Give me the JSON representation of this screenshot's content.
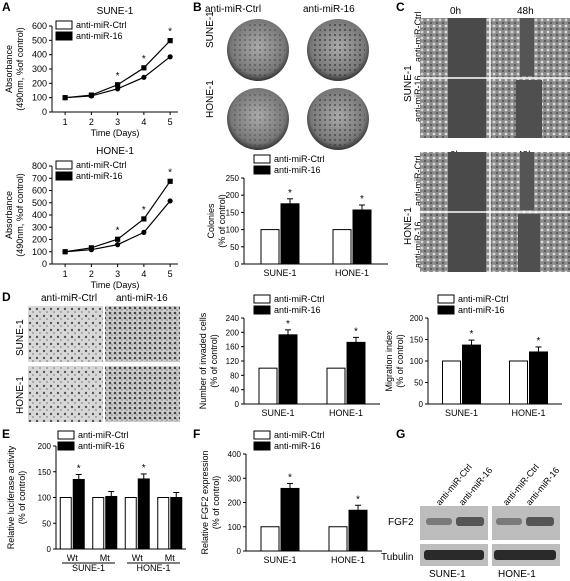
{
  "panel_letters": {
    "A": "A",
    "B": "B",
    "C": "C",
    "D": "D",
    "E": "E",
    "F": "F",
    "G": "G"
  },
  "legend": {
    "ctrl": "anti-miR-Ctrl",
    "mir16": "anti-miR-16"
  },
  "cells": {
    "sune": "SUNE-1",
    "hone": "HONE-1"
  },
  "photo_text": {
    "h0": "0h",
    "h48": "48h",
    "fgf2": "FGF2",
    "tubulin": "Tubulin"
  },
  "colors": {
    "ctrl": "#ffffff",
    "mir16": "#000000",
    "stroke": "#000000"
  },
  "chart_data": [
    {
      "id": "A-top",
      "type": "line",
      "title": "SUNE-1",
      "xlabel": "Time (Days)",
      "ylabel": "Absorbance (490nm, %of control)",
      "x": [
        1,
        2,
        3,
        4,
        5
      ],
      "ylim": [
        0,
        600
      ],
      "yticks": [
        0,
        100,
        200,
        300,
        400,
        500,
        600
      ],
      "series": [
        {
          "name": "anti-miR-Ctrl",
          "values": [
            100,
            112,
            162,
            242,
            385
          ]
        },
        {
          "name": "anti-miR-16",
          "values": [
            100,
            118,
            190,
            308,
            498
          ]
        }
      ],
      "annotations": [
        "*",
        "*",
        "*"
      ]
    },
    {
      "id": "A-bottom",
      "type": "line",
      "title": "HONE-1",
      "xlabel": "Time (Days)",
      "ylabel": "Absorbance (490nm, %of control)",
      "x": [
        1,
        2,
        3,
        4,
        5
      ],
      "ylim": [
        0,
        800
      ],
      "yticks": [
        0,
        100,
        200,
        300,
        400,
        500,
        600,
        700,
        800
      ],
      "series": [
        {
          "name": "anti-miR-Ctrl",
          "values": [
            100,
            117,
            158,
            258,
            515
          ]
        },
        {
          "name": "anti-miR-16",
          "values": [
            100,
            132,
            202,
            368,
            675
          ]
        }
      ],
      "annotations": [
        "*",
        "*",
        "*"
      ]
    },
    {
      "id": "B",
      "type": "bar",
      "ylabel": "Colonies (% of control)",
      "categories": [
        "SUNE-1",
        "HONE-1"
      ],
      "ylim": [
        0,
        250
      ],
      "yticks": [
        0,
        50,
        100,
        150,
        200,
        250
      ],
      "series": [
        {
          "name": "anti-miR-Ctrl",
          "values": [
            100,
            100
          ]
        },
        {
          "name": "anti-miR-16",
          "values": [
            175,
            157
          ]
        }
      ],
      "annotations": [
        "*",
        "*"
      ]
    },
    {
      "id": "D-invasion",
      "type": "bar",
      "ylabel": "Number of invaded cells (% of control)",
      "categories": [
        "SUNE-1",
        "HONE-1"
      ],
      "ylim": [
        0,
        240
      ],
      "yticks": [
        0,
        40,
        80,
        120,
        160,
        200,
        240
      ],
      "series": [
        {
          "name": "anti-miR-Ctrl",
          "values": [
            100,
            100
          ]
        },
        {
          "name": "anti-miR-16",
          "values": [
            193,
            172
          ]
        }
      ],
      "annotations": [
        "*",
        "*"
      ]
    },
    {
      "id": "D-migration",
      "type": "bar",
      "ylabel": "Migration index (% of control)",
      "categories": [
        "SUNE-1",
        "HONE-1"
      ],
      "ylim": [
        0,
        200
      ],
      "yticks": [
        0,
        50,
        100,
        150,
        200
      ],
      "series": [
        {
          "name": "anti-miR-Ctrl",
          "values": [
            100,
            100
          ]
        },
        {
          "name": "anti-miR-16",
          "values": [
            137,
            121
          ]
        }
      ],
      "annotations": [
        "*",
        "*"
      ]
    },
    {
      "id": "E",
      "type": "bar",
      "ylabel": "Relative luciferase activity (% of control)",
      "categories": [
        "Wt",
        "Mt",
        "Wt",
        "Mt"
      ],
      "groups": [
        "SUNE-1",
        "HONE-1"
      ],
      "ylim": [
        0,
        200
      ],
      "yticks": [
        0,
        50,
        100,
        150,
        200
      ],
      "series": [
        {
          "name": "anti-miR-Ctrl",
          "values": [
            100,
            100,
            100,
            100
          ]
        },
        {
          "name": "anti-miR-16",
          "values": [
            135,
            102,
            136,
            100
          ]
        }
      ],
      "annotations": [
        "*",
        "*"
      ]
    },
    {
      "id": "F",
      "type": "bar",
      "ylabel": "Relative FGF2 expression (% of control)",
      "categories": [
        "SUNE-1",
        "HONE-1"
      ],
      "ylim": [
        0,
        400
      ],
      "yticks": [
        0,
        100,
        200,
        300,
        400
      ],
      "series": [
        {
          "name": "anti-miR-Ctrl",
          "values": [
            100,
            100
          ]
        },
        {
          "name": "anti-miR-16",
          "values": [
            258,
            168
          ]
        }
      ],
      "annotations": [
        "*",
        "*"
      ]
    }
  ]
}
